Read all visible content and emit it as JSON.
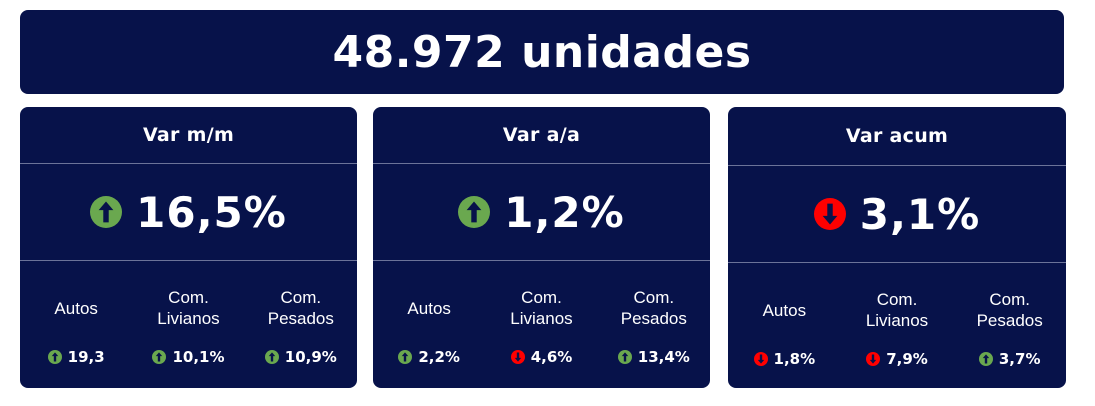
{
  "banner": {
    "title": "48.972 unidades"
  },
  "colors": {
    "background": "#07124a",
    "up": "#6aa84f",
    "down": "#ff0000",
    "text": "#ffffff"
  },
  "cards": [
    {
      "title": "Var m/m",
      "value": "16,5%",
      "direction": "up",
      "items": [
        {
          "label": "Autos",
          "value": "19,3",
          "direction": "up"
        },
        {
          "label": "Com.\nLivianos",
          "value": "10,1%",
          "direction": "up"
        },
        {
          "label": "Com.\nPesados",
          "value": "10,9%",
          "direction": "up"
        }
      ]
    },
    {
      "title": "Var a/a",
      "value": "1,2%",
      "direction": "up",
      "items": [
        {
          "label": "Autos",
          "value": "2,2%",
          "direction": "up"
        },
        {
          "label": "Com.\nLivianos",
          "value": "4,6%",
          "direction": "down"
        },
        {
          "label": "Com.\nPesados",
          "value": "13,4%",
          "direction": "up"
        }
      ]
    },
    {
      "title": "Var acum",
      "value": "3,1%",
      "direction": "down",
      "items": [
        {
          "label": "Autos",
          "value": "1,8%",
          "direction": "down"
        },
        {
          "label": "Com.\nLivianos",
          "value": "7,9%",
          "direction": "down"
        },
        {
          "label": "Com.\nPesados",
          "value": "3,7%",
          "direction": "up"
        }
      ]
    }
  ]
}
